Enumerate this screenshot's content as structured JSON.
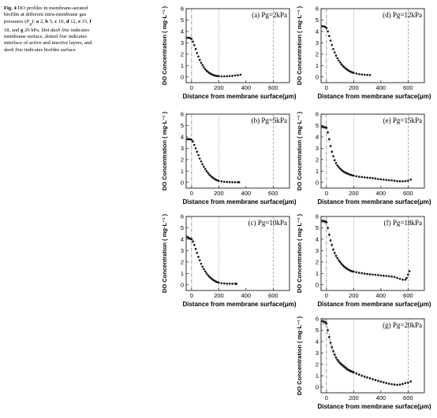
{
  "caption": {
    "lead": "Fig. 4",
    "pre": "DO profiles in membrane-aerated biofilm at different intra-membrane gas pressures (",
    "pg": "P",
    "pg_sub": "g",
    "mid1": "): ",
    "items": [
      {
        "letter": "a",
        "value": "2,"
      },
      {
        "letter": "b",
        "value": "5,"
      },
      {
        "letter": "c",
        "value": "10,"
      },
      {
        "letter": "d",
        "value": "12,"
      },
      {
        "letter": "e",
        "value": "15,"
      },
      {
        "letter": "f",
        "value": "18, and"
      },
      {
        "letter": "g",
        "value": "20 kPa."
      }
    ],
    "l1": "Dot dash line",
    "t1": "indicates membrane surface,",
    "l2": "dotted line",
    "t2": "indicates interface of active and inactive layers, and",
    "l3": "dash line",
    "t3": "indicates biofilm surface"
  },
  "chart_data": [
    {
      "id": "a",
      "type": "scatter",
      "title": "(a) Pg=2kPa",
      "xlabel": "Distance from membrane surface(μm)",
      "ylabel": "DO Concentration ( mg·L⁻¹ )",
      "xlim": [
        -40,
        720
      ],
      "ylim": [
        -0.5,
        6
      ],
      "xticks": [
        0,
        200,
        400,
        600
      ],
      "yticks": [
        0,
        1,
        2,
        3,
        4,
        5,
        6
      ],
      "x_end": 360,
      "lines": {
        "membrane": 0,
        "interface": 200,
        "biofilm": 600
      },
      "error_scale": 0.04,
      "x": [
        -30,
        -20,
        -10,
        0,
        10,
        20,
        30,
        40,
        50,
        60,
        70,
        80,
        90,
        100,
        110,
        120,
        130,
        140,
        150,
        160,
        170,
        180,
        190,
        200,
        220,
        240,
        260,
        280,
        300,
        320,
        340,
        360
      ],
      "y": [
        3.45,
        3.45,
        3.4,
        3.35,
        3.1,
        2.8,
        2.45,
        2.1,
        1.8,
        1.5,
        1.25,
        1.05,
        0.85,
        0.68,
        0.55,
        0.45,
        0.36,
        0.28,
        0.22,
        0.17,
        0.13,
        0.1,
        0.08,
        0.07,
        0.06,
        0.05,
        0.06,
        0.08,
        0.1,
        0.13,
        0.15,
        0.2
      ]
    },
    {
      "id": "b",
      "type": "scatter",
      "title": "(b) Pg=5kPa",
      "xlabel": "Distance from membrane surface(μm)",
      "ylabel": "DO Concentration ( mg·L⁻¹ )",
      "xlim": [
        -40,
        720
      ],
      "ylim": [
        -0.5,
        6
      ],
      "xticks": [
        0,
        200,
        400,
        600
      ],
      "yticks": [
        0,
        1,
        2,
        3,
        4,
        5,
        6
      ],
      "x_end": 350,
      "lines": {
        "membrane": 0,
        "interface": 200,
        "biofilm": 600
      },
      "error_scale": 0.03,
      "x": [
        -30,
        -20,
        -10,
        0,
        10,
        20,
        30,
        40,
        50,
        60,
        70,
        80,
        90,
        100,
        110,
        120,
        130,
        140,
        150,
        160,
        170,
        180,
        190,
        200,
        220,
        240,
        260,
        280,
        300,
        320,
        340,
        350
      ],
      "y": [
        3.8,
        3.8,
        3.8,
        3.75,
        3.6,
        3.3,
        3.0,
        2.7,
        2.4,
        2.1,
        1.85,
        1.6,
        1.38,
        1.18,
        1.0,
        0.85,
        0.7,
        0.58,
        0.47,
        0.38,
        0.3,
        0.23,
        0.18,
        0.14,
        0.09,
        0.06,
        0.04,
        0.03,
        0.02,
        0.02,
        0.02,
        0.02
      ]
    },
    {
      "id": "c",
      "type": "scatter",
      "title": "(c) Pg=10kPa",
      "xlabel": "Distance from membrane surface(μm)",
      "ylabel": "DO Concentration ( mg·L⁻¹ )",
      "xlim": [
        -40,
        720
      ],
      "ylim": [
        -0.5,
        6
      ],
      "xticks": [
        0,
        200,
        400,
        600
      ],
      "yticks": [
        0,
        1,
        2,
        3,
        4,
        5,
        6
      ],
      "x_end": 330,
      "lines": {
        "membrane": 0,
        "interface": 200,
        "biofilm": 600
      },
      "error_scale": 0.1,
      "x": [
        -30,
        -20,
        -10,
        0,
        10,
        20,
        30,
        40,
        50,
        60,
        70,
        80,
        90,
        100,
        110,
        120,
        130,
        140,
        150,
        160,
        170,
        180,
        190,
        200,
        220,
        240,
        260,
        280,
        300,
        320,
        330
      ],
      "y": [
        4.2,
        4.1,
        4.05,
        4.0,
        3.8,
        3.5,
        3.15,
        2.8,
        2.45,
        2.15,
        1.85,
        1.6,
        1.38,
        1.18,
        1.0,
        0.85,
        0.72,
        0.6,
        0.5,
        0.42,
        0.35,
        0.28,
        0.23,
        0.19,
        0.14,
        0.12,
        0.1,
        0.1,
        0.09,
        0.1,
        0.08
      ]
    },
    {
      "id": "d",
      "type": "scatter",
      "title": "(d) Pg=12kPa",
      "xlabel": "Distance from membrane surface(μm)",
      "ylabel": "DO Concentration ( mg·L⁻¹ )",
      "xlim": [
        -40,
        720
      ],
      "ylim": [
        -0.5,
        6
      ],
      "xticks": [
        0,
        200,
        400,
        600
      ],
      "yticks": [
        0,
        1,
        2,
        3,
        4,
        5,
        6
      ],
      "x_end": 320,
      "lines": {
        "membrane": 0,
        "interface": 200,
        "biofilm": 600
      },
      "error_scale": 0.04,
      "x": [
        -30,
        -20,
        -10,
        0,
        10,
        20,
        30,
        40,
        50,
        60,
        70,
        80,
        90,
        100,
        110,
        120,
        130,
        140,
        150,
        160,
        170,
        180,
        190,
        200,
        220,
        240,
        260,
        280,
        300,
        320
      ],
      "y": [
        4.45,
        4.45,
        4.4,
        4.3,
        4.0,
        3.6,
        3.2,
        2.8,
        2.45,
        2.15,
        1.88,
        1.65,
        1.45,
        1.28,
        1.12,
        0.98,
        0.86,
        0.76,
        0.66,
        0.58,
        0.51,
        0.45,
        0.4,
        0.36,
        0.3,
        0.25,
        0.22,
        0.2,
        0.18,
        0.17
      ]
    },
    {
      "id": "e",
      "type": "scatter",
      "title": "(e) Pg=15kPa",
      "xlabel": "Distance from membrane surface(μm)",
      "ylabel": "DO Concentration ( mg·L⁻¹ )",
      "xlim": [
        -40,
        720
      ],
      "ylim": [
        -0.5,
        6
      ],
      "xticks": [
        0,
        200,
        400,
        600
      ],
      "yticks": [
        0,
        1,
        2,
        3,
        4,
        5,
        6
      ],
      "x_end": 620,
      "lines": {
        "membrane": 0,
        "interface": 200,
        "biofilm": 600
      },
      "error_scale": 0.12,
      "x": [
        -30,
        -20,
        -10,
        0,
        10,
        20,
        30,
        40,
        50,
        60,
        70,
        80,
        90,
        100,
        110,
        120,
        130,
        140,
        150,
        160,
        170,
        180,
        190,
        200,
        220,
        240,
        260,
        280,
        300,
        320,
        340,
        360,
        380,
        400,
        420,
        440,
        460,
        480,
        500,
        520,
        540,
        560,
        580,
        600,
        620
      ],
      "y": [
        4.9,
        4.85,
        4.85,
        4.8,
        4.4,
        3.8,
        3.2,
        2.7,
        2.3,
        1.95,
        1.7,
        1.5,
        1.35,
        1.22,
        1.1,
        1.0,
        0.92,
        0.85,
        0.8,
        0.75,
        0.7,
        0.66,
        0.62,
        0.6,
        0.55,
        0.5,
        0.48,
        0.45,
        0.42,
        0.4,
        0.38,
        0.35,
        0.3,
        0.28,
        0.25,
        0.22,
        0.2,
        0.18,
        0.15,
        0.12,
        0.1,
        0.1,
        0.12,
        0.15,
        0.25
      ]
    },
    {
      "id": "f",
      "type": "scatter",
      "title": "(f) Pg=18kPa",
      "xlabel": "Distance from membrane surface(μm)",
      "ylabel": "DO Concentration ( mg·L⁻¹ )",
      "xlim": [
        -40,
        720
      ],
      "ylim": [
        -0.5,
        6
      ],
      "xticks": [
        0,
        200,
        400,
        600
      ],
      "yticks": [
        0,
        1,
        2,
        3,
        4,
        5,
        6
      ],
      "x_end": 610,
      "lines": {
        "membrane": 0,
        "interface": 200,
        "biofilm": 600
      },
      "error_scale": 0.15,
      "x": [
        -30,
        -20,
        -10,
        0,
        10,
        20,
        30,
        40,
        50,
        60,
        70,
        80,
        90,
        100,
        110,
        120,
        130,
        140,
        150,
        160,
        170,
        180,
        190,
        200,
        220,
        240,
        260,
        280,
        300,
        320,
        340,
        360,
        380,
        400,
        420,
        440,
        460,
        480,
        500,
        520,
        540,
        560,
        580,
        590,
        600,
        610
      ],
      "y": [
        5.6,
        5.6,
        5.55,
        5.5,
        5.0,
        4.4,
        3.9,
        3.5,
        3.1,
        2.8,
        2.55,
        2.35,
        2.15,
        2.0,
        1.85,
        1.72,
        1.6,
        1.5,
        1.42,
        1.35,
        1.28,
        1.22,
        1.18,
        1.15,
        1.1,
        1.05,
        1.02,
        0.98,
        0.95,
        0.92,
        0.9,
        0.88,
        0.85,
        0.82,
        0.8,
        0.78,
        0.75,
        0.72,
        0.68,
        0.6,
        0.52,
        0.45,
        0.45,
        0.6,
        0.9,
        1.2
      ]
    },
    {
      "id": "g",
      "type": "scatter",
      "title": "(g) Pg=20kPa",
      "xlabel": "Distance from membrane surface(μm)",
      "ylabel": "DO Concentration ( mg·L⁻¹ )",
      "xlim": [
        -40,
        720
      ],
      "ylim": [
        -0.5,
        6
      ],
      "xticks": [
        0,
        200,
        400,
        600
      ],
      "yticks": [
        0,
        1,
        2,
        3,
        4,
        5,
        6
      ],
      "x_end": 620,
      "lines": {
        "membrane": 0,
        "interface": 200,
        "biofilm": 600
      },
      "error_scale": 0.22,
      "x": [
        -30,
        -20,
        -10,
        0,
        10,
        20,
        30,
        40,
        50,
        60,
        70,
        80,
        90,
        100,
        110,
        120,
        130,
        140,
        150,
        160,
        170,
        180,
        190,
        200,
        220,
        240,
        260,
        280,
        300,
        320,
        340,
        360,
        380,
        400,
        420,
        440,
        460,
        480,
        500,
        520,
        540,
        560,
        580,
        600,
        620
      ],
      "y": [
        5.8,
        5.75,
        5.7,
        5.6,
        5.0,
        4.4,
        3.9,
        3.5,
        3.15,
        2.85,
        2.6,
        2.4,
        2.25,
        2.1,
        2.0,
        1.9,
        1.8,
        1.7,
        1.6,
        1.52,
        1.45,
        1.4,
        1.35,
        1.3,
        1.2,
        1.1,
        1.0,
        0.92,
        0.85,
        0.78,
        0.7,
        0.62,
        0.55,
        0.48,
        0.42,
        0.36,
        0.3,
        0.26,
        0.22,
        0.2,
        0.22,
        0.28,
        0.35,
        0.4,
        0.5
      ]
    }
  ]
}
